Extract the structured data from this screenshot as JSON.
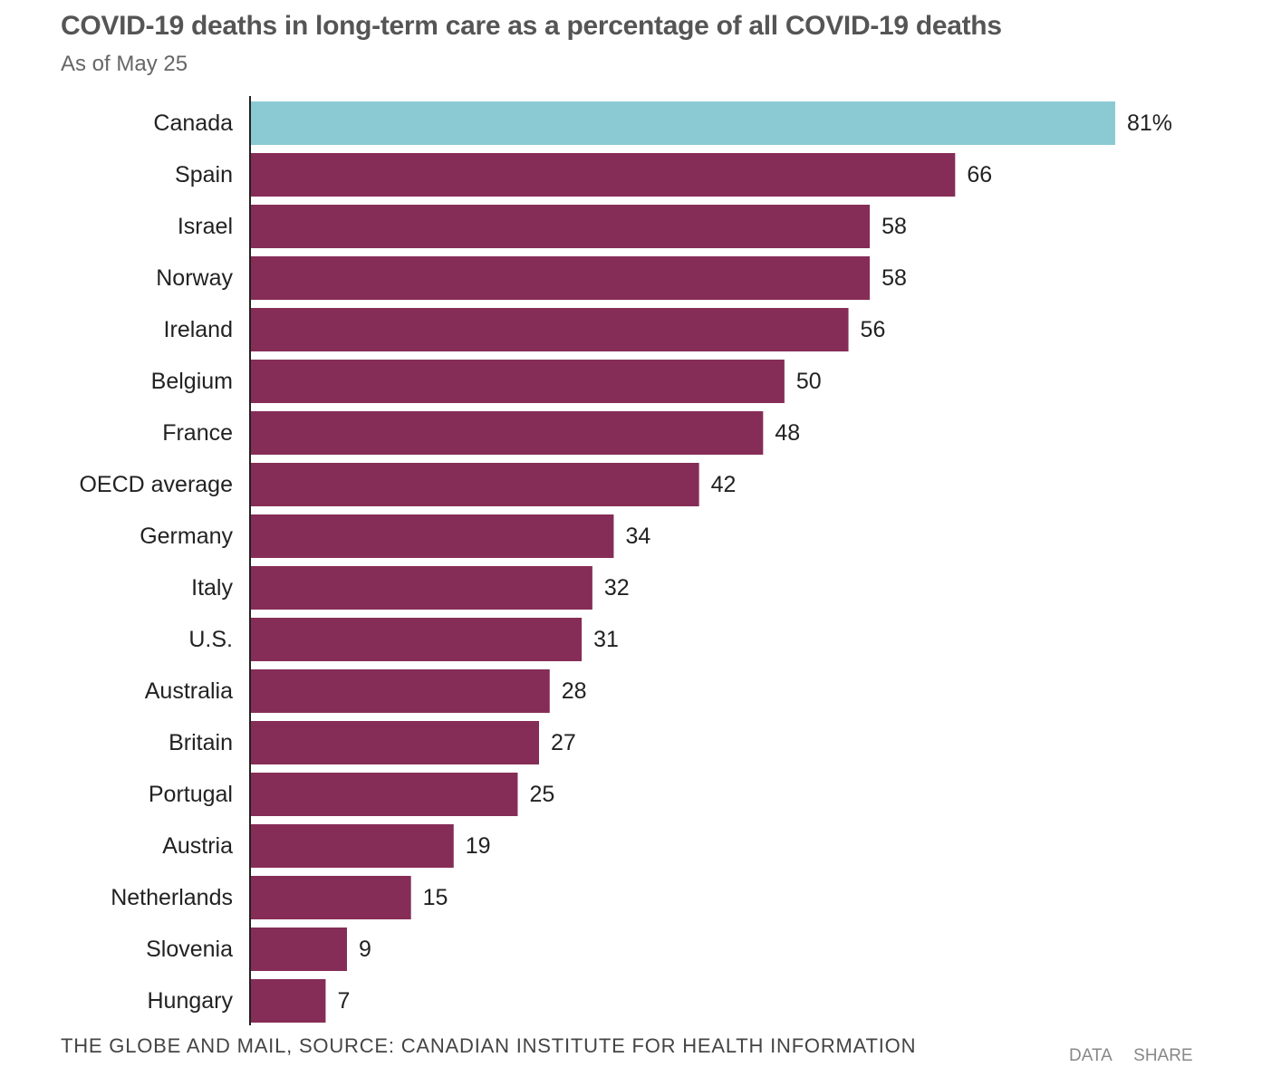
{
  "header": {
    "title": "COVID-19 deaths in long-term care as a percentage of all COVID-19 deaths",
    "subtitle": "As of May 25"
  },
  "footer": {
    "source": "THE GLOBE AND MAIL, SOURCE: CANADIAN INSTITUTE FOR HEALTH INFORMATION",
    "data_link": "DATA",
    "share_link": "SHARE"
  },
  "colors": {
    "highlight": "#8ccad3",
    "bar": "#862d57",
    "axis": "#222222"
  },
  "chart_data": {
    "type": "bar",
    "orientation": "horizontal",
    "title": "COVID-19 deaths in long-term care as a percentage of all COVID-19 deaths",
    "subtitle": "As of May 25",
    "categories": [
      "Canada",
      "Spain",
      "Israel",
      "Norway",
      "Ireland",
      "Belgium",
      "France",
      "OECD average",
      "Germany",
      "Italy",
      "U.S.",
      "Australia",
      "Britain",
      "Portugal",
      "Austria",
      "Netherlands",
      "Slovenia",
      "Hungary"
    ],
    "values": [
      81,
      66,
      58,
      58,
      56,
      50,
      48,
      42,
      34,
      32,
      31,
      28,
      27,
      25,
      19,
      15,
      9,
      7
    ],
    "value_labels": [
      "81%",
      "66",
      "58",
      "58",
      "56",
      "50",
      "48",
      "42",
      "34",
      "32",
      "31",
      "28",
      "27",
      "25",
      "19",
      "15",
      "9",
      "7"
    ],
    "highlight_category": "Canada",
    "xlim": [
      0,
      81
    ],
    "grid": false,
    "xlabel": "",
    "ylabel": ""
  }
}
